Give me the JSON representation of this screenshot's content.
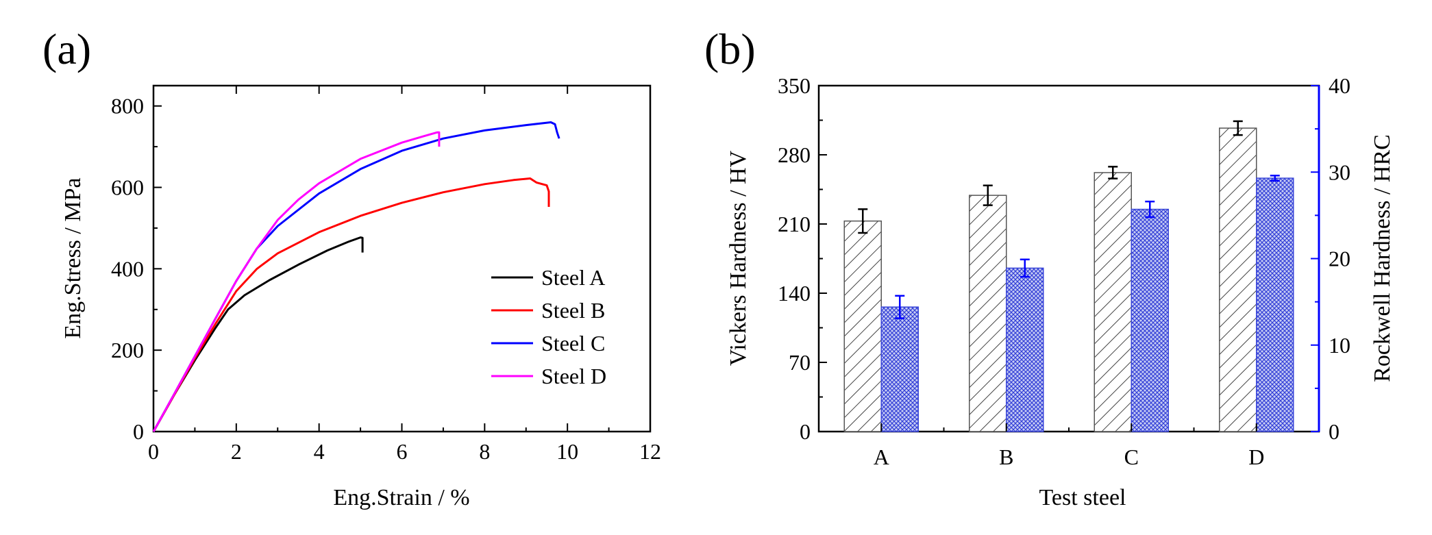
{
  "chart_data": [
    {
      "panel_label": "(a)",
      "type": "line",
      "xlabel": "Eng.Strain / %",
      "ylabel": "Eng.Stress / MPa",
      "xlim": [
        0,
        12
      ],
      "ylim": [
        0,
        850
      ],
      "xticks": [
        0,
        2,
        4,
        6,
        8,
        10,
        12
      ],
      "yticks": [
        0,
        200,
        400,
        600,
        800
      ],
      "legend_position": "bottom-right",
      "series": [
        {
          "name": "Steel A",
          "color": "#000000",
          "x": [
            0,
            0.5,
            1.0,
            1.5,
            1.8,
            2.2,
            2.8,
            3.5,
            4.2,
            4.7,
            5.0,
            5.05,
            5.05
          ],
          "y": [
            0,
            90,
            175,
            255,
            300,
            335,
            372,
            410,
            445,
            466,
            477,
            476,
            440
          ]
        },
        {
          "name": "Steel B",
          "color": "#ff0000",
          "x": [
            0,
            0.5,
            1.0,
            1.5,
            2.0,
            2.5,
            3.0,
            4.0,
            5.0,
            6.0,
            7.0,
            8.0,
            8.7,
            9.1,
            9.25,
            9.5,
            9.55,
            9.55
          ],
          "y": [
            0,
            90,
            180,
            265,
            345,
            400,
            438,
            490,
            530,
            562,
            588,
            608,
            618,
            622,
            612,
            605,
            590,
            552
          ]
        },
        {
          "name": "Steel C",
          "color": "#0000ff",
          "x": [
            0,
            0.5,
            1.0,
            1.5,
            2.0,
            2.5,
            3.0,
            4.0,
            5.0,
            6.0,
            7.0,
            8.0,
            9.0,
            9.6,
            9.7,
            9.75,
            9.8
          ],
          "y": [
            0,
            92,
            185,
            278,
            370,
            450,
            505,
            585,
            645,
            690,
            720,
            740,
            753,
            760,
            755,
            735,
            720
          ]
        },
        {
          "name": "Steel D",
          "color": "#ff00ff",
          "x": [
            0,
            0.5,
            1.0,
            1.5,
            2.0,
            2.5,
            3.0,
            3.5,
            4.0,
            5.0,
            6.0,
            6.5,
            6.85,
            6.9,
            6.9
          ],
          "y": [
            0,
            92,
            185,
            278,
            370,
            450,
            520,
            570,
            610,
            670,
            710,
            725,
            735,
            735,
            700
          ]
        }
      ]
    },
    {
      "panel_label": "(b)",
      "type": "bar",
      "xlabel": "Test steel",
      "ylabel_left": "Vickers Hardness / HV",
      "ylabel_right": "Rockwell Hardness / HRC",
      "categories": [
        "A",
        "B",
        "C",
        "D"
      ],
      "ylim_left": [
        0,
        350
      ],
      "ylim_right": [
        0,
        40
      ],
      "yticks_left": [
        0,
        70,
        140,
        210,
        280,
        350
      ],
      "yticks_right": [
        0,
        10,
        20,
        30,
        40
      ],
      "series": [
        {
          "name": "Vickers Hardness",
          "axis": "left",
          "color": "#000000",
          "pattern": "diagonal hatch",
          "values": [
            213,
            239,
            262,
            307
          ],
          "errors": [
            12,
            10,
            6,
            7
          ]
        },
        {
          "name": "Rockwell Hardness",
          "axis": "right",
          "color": "#0000ff",
          "pattern": "crosshatch",
          "values": [
            14.4,
            18.9,
            25.7,
            29.3
          ],
          "errors": [
            1.3,
            1.0,
            0.9,
            0.3
          ]
        }
      ]
    }
  ]
}
